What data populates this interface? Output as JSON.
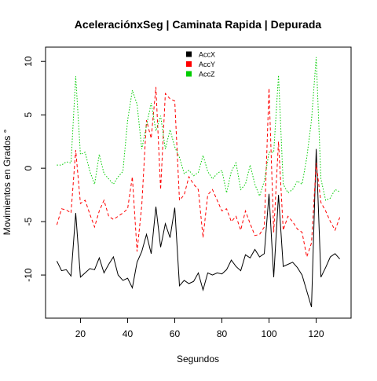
{
  "chart_data": {
    "type": "line",
    "title": "AceleraciónxSeg | Caminata Rapida | Depurada",
    "x_label": "Segundos",
    "y_label": "Movimientos en Grados °",
    "x": [
      10,
      12,
      14,
      16,
      18,
      20,
      22,
      24,
      26,
      28,
      30,
      32,
      34,
      36,
      38,
      40,
      42,
      44,
      46,
      48,
      50,
      52,
      54,
      56,
      58,
      60,
      62,
      64,
      66,
      68,
      70,
      72,
      74,
      76,
      78,
      80,
      82,
      84,
      86,
      88,
      90,
      92,
      94,
      96,
      98,
      100,
      102,
      104,
      106,
      108,
      110,
      112,
      114,
      116,
      118,
      120,
      122,
      124,
      126,
      128,
      130
    ],
    "series": [
      {
        "name": "AccX",
        "color": "#000000",
        "dash": "solid",
        "values": [
          -8.7,
          -9.6,
          -9.5,
          -10.1,
          -4.2,
          -10.2,
          -9.8,
          -9.4,
          -9.5,
          -8.4,
          -9.8,
          -9.0,
          -8.3,
          -10.0,
          -10.5,
          -10.3,
          -11.2,
          -8.8,
          -7.8,
          -6.2,
          -8.0,
          -3.6,
          -7.4,
          -5.2,
          -6.5,
          -3.7,
          -11.0,
          -10.5,
          -10.8,
          -10.6,
          -9.8,
          -11.4,
          -9.8,
          -10.0,
          -9.8,
          -9.9,
          -9.5,
          -8.6,
          -9.2,
          -9.6,
          -8.1,
          -8.4,
          -7.6,
          -8.3,
          -8.0,
          -2.4,
          -10.2,
          -2.5,
          -9.2,
          -9.0,
          -8.8,
          -9.3,
          -10.0,
          -11.5,
          -13.0,
          1.8,
          -10.2,
          -9.3,
          -8.3,
          -8.0,
          -8.5
        ]
      },
      {
        "name": "AccY",
        "color": "#ff0000",
        "dash": "dashed",
        "values": [
          -5.3,
          -3.8,
          -3.9,
          -4.2,
          1.7,
          -3.3,
          -3.0,
          -4.3,
          -5.5,
          -4.0,
          -3.0,
          -4.5,
          -4.8,
          -4.5,
          -4.2,
          -3.8,
          -0.8,
          -7.8,
          -3.5,
          4.5,
          2.8,
          7.6,
          -2.0,
          7.0,
          6.5,
          6.3,
          -3.0,
          -2.5,
          -0.8,
          -1.5,
          -2.0,
          -6.5,
          -2.5,
          -2.0,
          -3.0,
          -4.0,
          -3.8,
          -5.0,
          -4.5,
          -5.8,
          -4.0,
          -5.2,
          -6.3,
          -6.2,
          -5.5,
          7.5,
          -6.0,
          2.5,
          -5.8,
          -4.5,
          -5.0,
          -5.7,
          -6.0,
          -8.3,
          -7.0,
          0.5,
          -3.2,
          -4.0,
          -5.0,
          -5.8,
          -4.6
        ]
      },
      {
        "name": "AccZ",
        "color": "#00cd00",
        "dash": "dotted",
        "values": [
          0.3,
          0.3,
          0.6,
          0.5,
          8.6,
          1.3,
          1.5,
          -0.3,
          -1.5,
          1.3,
          -0.5,
          -1.0,
          -1.5,
          -0.8,
          -0.3,
          4.5,
          7.3,
          6.0,
          1.8,
          4.0,
          6.1,
          3.5,
          4.9,
          1.8,
          3.6,
          2.0,
          1.0,
          -0.5,
          -0.2,
          -0.7,
          -0.4,
          1.2,
          -0.3,
          -1.0,
          -0.5,
          -0.2,
          -2.3,
          -0.3,
          0.5,
          -2.0,
          -1.5,
          0.3,
          -1.5,
          -2.6,
          -1.2,
          1.5,
          1.5,
          8.7,
          -1.5,
          -2.3,
          -2.0,
          -1.2,
          -1.5,
          1.0,
          4.5,
          10.4,
          -1.0,
          -3.0,
          -2.8,
          -2.0,
          -2.2
        ]
      }
    ],
    "xlim": [
      5.2,
      134.8
    ],
    "ylim": [
      -14.04,
      11.34
    ],
    "xticks": [
      20,
      40,
      60,
      80,
      100,
      120
    ],
    "yticks": [
      -10,
      -5,
      0,
      5,
      10
    ],
    "legend": "top"
  }
}
